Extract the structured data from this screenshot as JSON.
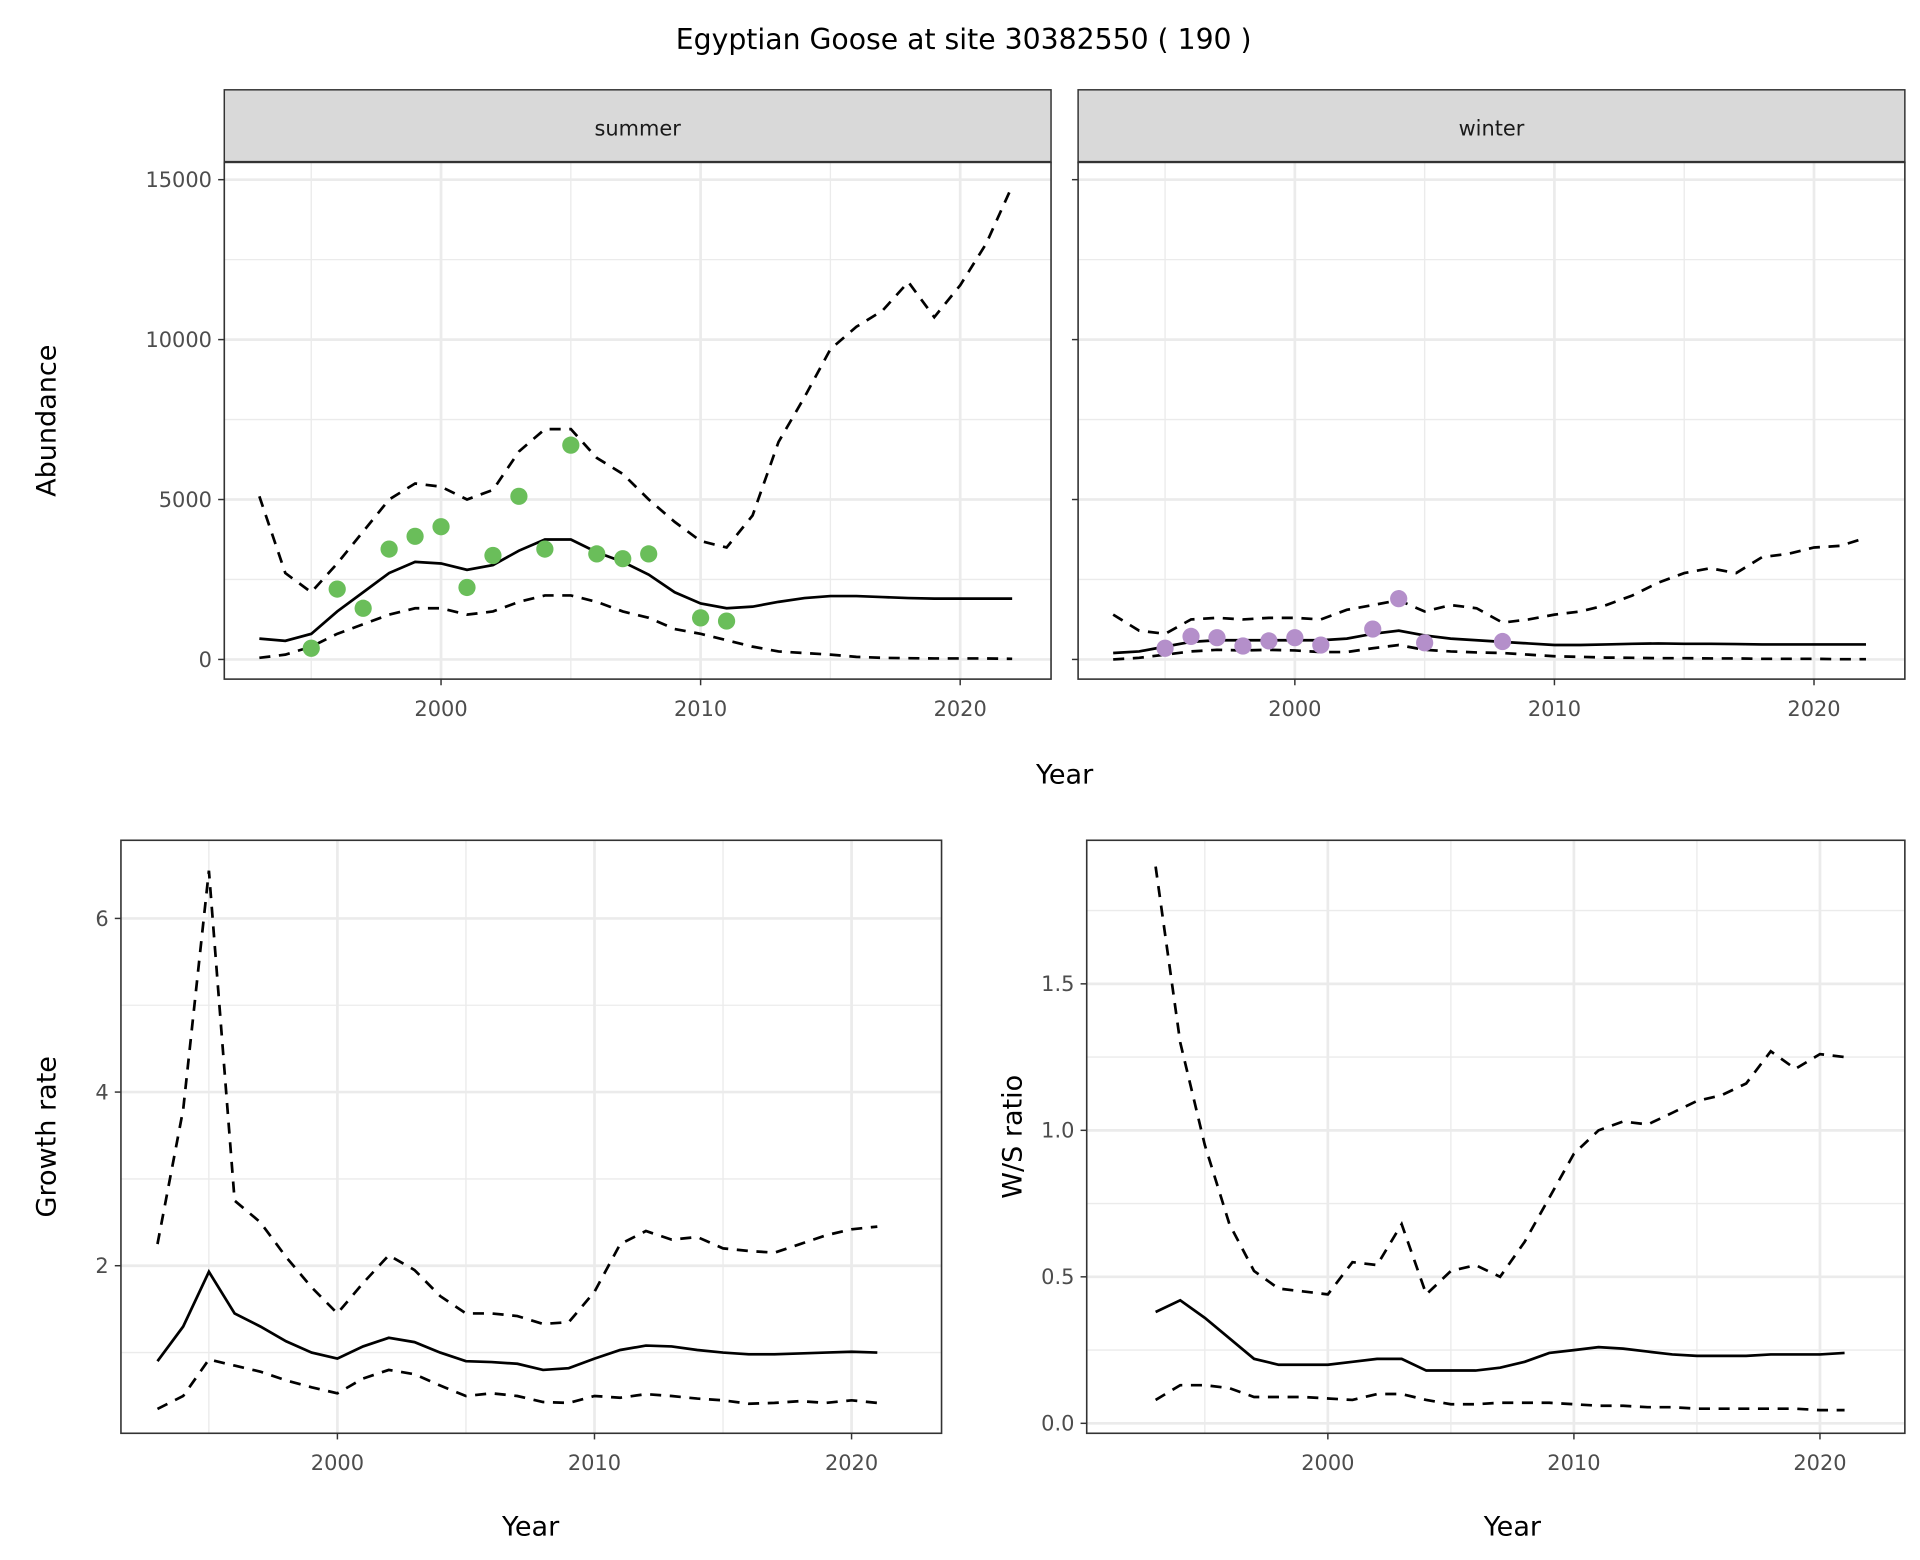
{
  "title": "Egyptian Goose at site 30382550 ( 190 )",
  "colors": {
    "summer_points": "#6ABE5A",
    "winter_points": "#B48FCA",
    "line": "#000000",
    "strip_bg": "#D9D9D9",
    "grid": "#EBEBEB"
  },
  "chart_data": [
    {
      "id": "summer",
      "type": "line",
      "strip": "summer",
      "xlabel": "Year",
      "ylabel": "Abundance",
      "xlim": [
        1991.65,
        2023.5
      ],
      "ylim": [
        -615,
        15540
      ],
      "xticks": [
        2000,
        2010,
        2020
      ],
      "yticks": [
        0,
        5000,
        10000,
        15000
      ],
      "years": [
        1993,
        1994,
        1995,
        1996,
        1997,
        1998,
        1999,
        2000,
        2001,
        2002,
        2003,
        2004,
        2005,
        2006,
        2007,
        2008,
        2009,
        2010,
        2011,
        2012,
        2013,
        2014,
        2015,
        2016,
        2017,
        2018,
        2019,
        2020,
        2021,
        2022
      ],
      "mean": [
        650,
        580,
        800,
        1500,
        2100,
        2700,
        3050,
        3000,
        2800,
        2950,
        3400,
        3750,
        3750,
        3350,
        3050,
        2650,
        2100,
        1750,
        1600,
        1650,
        1800,
        1920,
        1980,
        1980,
        1950,
        1920,
        1900,
        1900,
        1900,
        1900
      ],
      "upper": [
        5100,
        2700,
        2100,
        3000,
        4000,
        5000,
        5500,
        5400,
        5000,
        5300,
        6500,
        7200,
        7200,
        6300,
        5800,
        5000,
        4300,
        3700,
        3500,
        4500,
        6800,
        8200,
        9700,
        10400,
        10900,
        11800,
        10700,
        11700,
        13000,
        14800
      ],
      "lower": [
        50,
        150,
        400,
        800,
        1100,
        1400,
        1600,
        1600,
        1400,
        1500,
        1800,
        2000,
        2000,
        1800,
        1500,
        1300,
        950,
        800,
        600,
        400,
        250,
        200,
        150,
        80,
        50,
        40,
        30,
        30,
        30,
        20
      ],
      "points": {
        "x": [
          1995,
          1996,
          1997,
          1998,
          1999,
          2000,
          2001,
          2002,
          2003,
          2004,
          2005,
          2006,
          2007,
          2008,
          2010,
          2011
        ],
        "y": [
          350,
          2200,
          1600,
          3450,
          3850,
          4150,
          2250,
          3250,
          5100,
          3450,
          6700,
          3300,
          3150,
          3300,
          1300,
          1200
        ]
      }
    },
    {
      "id": "winter",
      "type": "line",
      "strip": "winter",
      "xlabel": "Year",
      "ylabel": "Abundance",
      "xlim": [
        1991.65,
        2023.5
      ],
      "ylim": [
        -615,
        15540
      ],
      "xticks": [
        2000,
        2010,
        2020
      ],
      "yticks": [
        0,
        5000,
        10000,
        15000
      ],
      "years": [
        1993,
        1994,
        1995,
        1996,
        1997,
        1998,
        1999,
        2000,
        2001,
        2002,
        2003,
        2004,
        2005,
        2006,
        2007,
        2008,
        2009,
        2010,
        2011,
        2012,
        2013,
        2014,
        2015,
        2016,
        2017,
        2018,
        2019,
        2020,
        2021,
        2022
      ],
      "mean": [
        200,
        250,
        400,
        550,
        600,
        600,
        600,
        600,
        600,
        650,
        800,
        900,
        750,
        650,
        600,
        550,
        500,
        450,
        450,
        470,
        490,
        500,
        490,
        490,
        480,
        470,
        470,
        470,
        470,
        470
      ],
      "upper": [
        1400,
        900,
        800,
        1250,
        1300,
        1250,
        1300,
        1300,
        1250,
        1550,
        1700,
        1850,
        1500,
        1700,
        1600,
        1150,
        1250,
        1400,
        1500,
        1700,
        2000,
        2400,
        2700,
        2850,
        2700,
        3200,
        3300,
        3500,
        3550,
        3800
      ],
      "lower": [
        0,
        50,
        150,
        250,
        300,
        280,
        300,
        280,
        230,
        230,
        350,
        450,
        300,
        250,
        220,
        200,
        150,
        100,
        80,
        60,
        50,
        40,
        40,
        30,
        30,
        20,
        20,
        20,
        10,
        10
      ],
      "points": {
        "x": [
          1995,
          1996,
          1997,
          1998,
          1999,
          2000,
          2001,
          2003,
          2004,
          2005,
          2008
        ],
        "y": [
          350,
          720,
          680,
          420,
          580,
          680,
          450,
          950,
          1900,
          520,
          560
        ]
      }
    },
    {
      "id": "growth",
      "type": "line",
      "xlabel": "Year",
      "ylabel": "Growth rate",
      "xlim": [
        1991.58,
        2023.5
      ],
      "ylim": [
        0.07,
        6.9
      ],
      "xticks": [
        2000,
        2010,
        2020
      ],
      "yticks": [
        2,
        4,
        6
      ],
      "years": [
        1993,
        1994,
        1995,
        1996,
        1997,
        1998,
        1999,
        2000,
        2001,
        2002,
        2003,
        2004,
        2005,
        2006,
        2007,
        2008,
        2009,
        2010,
        2011,
        2012,
        2013,
        2014,
        2015,
        2016,
        2017,
        2018,
        2019,
        2020,
        2021
      ],
      "mean": [
        0.9,
        1.3,
        1.93,
        1.45,
        1.3,
        1.13,
        1.0,
        0.93,
        1.07,
        1.17,
        1.12,
        1.0,
        0.9,
        0.89,
        0.87,
        0.8,
        0.82,
        0.93,
        1.03,
        1.08,
        1.07,
        1.03,
        1.0,
        0.98,
        0.98,
        0.99,
        1.0,
        1.01,
        1.0
      ],
      "upper": [
        2.25,
        3.8,
        6.55,
        2.75,
        2.5,
        2.1,
        1.75,
        1.45,
        1.8,
        2.12,
        1.95,
        1.65,
        1.45,
        1.45,
        1.42,
        1.33,
        1.35,
        1.7,
        2.25,
        2.4,
        2.3,
        2.33,
        2.2,
        2.17,
        2.15,
        2.25,
        2.35,
        2.42,
        2.45
      ],
      "lower": [
        0.35,
        0.5,
        0.92,
        0.85,
        0.78,
        0.68,
        0.6,
        0.53,
        0.7,
        0.8,
        0.75,
        0.62,
        0.5,
        0.53,
        0.5,
        0.43,
        0.42,
        0.5,
        0.48,
        0.52,
        0.5,
        0.47,
        0.45,
        0.41,
        0.42,
        0.44,
        0.42,
        0.45,
        0.42
      ]
    },
    {
      "id": "ratio",
      "type": "line",
      "xlabel": "Year",
      "ylabel": "W/S ratio",
      "xlim": [
        1990.2,
        2023.45
      ],
      "ylim": [
        -0.034,
        1.99
      ],
      "xticks": [
        2000,
        2010,
        2020
      ],
      "yticks": [
        0.0,
        0.5,
        1.0,
        1.5
      ],
      "ytick_labels": [
        "0.0",
        "0.5",
        "1.0",
        "1.5"
      ],
      "years": [
        1993,
        1994,
        1995,
        1996,
        1997,
        1998,
        1999,
        2000,
        2001,
        2002,
        2003,
        2004,
        2005,
        2006,
        2007,
        2008,
        2009,
        2010,
        2011,
        2012,
        2013,
        2014,
        2015,
        2016,
        2017,
        2018,
        2019,
        2020,
        2021
      ],
      "mean": [
        0.38,
        0.42,
        0.36,
        0.29,
        0.22,
        0.2,
        0.2,
        0.2,
        0.21,
        0.22,
        0.22,
        0.18,
        0.18,
        0.18,
        0.19,
        0.21,
        0.24,
        0.25,
        0.26,
        0.255,
        0.245,
        0.235,
        0.23,
        0.23,
        0.23,
        0.235,
        0.235,
        0.235,
        0.24
      ],
      "upper": [
        1.9,
        1.3,
        0.95,
        0.68,
        0.52,
        0.46,
        0.45,
        0.44,
        0.55,
        0.54,
        0.68,
        0.44,
        0.52,
        0.54,
        0.5,
        0.62,
        0.77,
        0.92,
        1.0,
        1.03,
        1.02,
        1.06,
        1.1,
        1.12,
        1.16,
        1.27,
        1.21,
        1.26,
        1.25
      ],
      "lower": [
        0.08,
        0.13,
        0.13,
        0.12,
        0.09,
        0.09,
        0.09,
        0.085,
        0.08,
        0.1,
        0.1,
        0.08,
        0.065,
        0.065,
        0.07,
        0.07,
        0.07,
        0.065,
        0.06,
        0.06,
        0.055,
        0.055,
        0.05,
        0.05,
        0.05,
        0.05,
        0.05,
        0.045,
        0.045
      ]
    }
  ]
}
